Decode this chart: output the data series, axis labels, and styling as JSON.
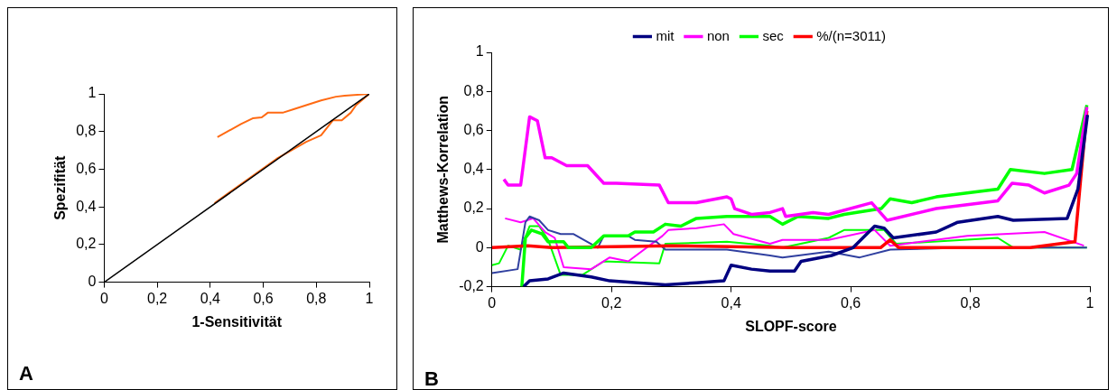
{
  "chart_data": [
    {
      "type": "line",
      "xlabel": "1-Sensitivität",
      "ylabel": "Spezifität",
      "xlim": [
        0,
        1
      ],
      "ylim": [
        0,
        1
      ],
      "xticks": [
        {
          "value": 0,
          "label": "0"
        },
        {
          "value": 0.2,
          "label": "0,2"
        },
        {
          "value": 0.4,
          "label": "0,4"
        },
        {
          "value": 0.6,
          "label": "0,6"
        },
        {
          "value": 0.8,
          "label": "0,8"
        },
        {
          "value": 1,
          "label": "1"
        }
      ],
      "yticks": [
        {
          "value": 0,
          "label": "0"
        },
        {
          "value": 0.2,
          "label": "0,2"
        },
        {
          "value": 0.4,
          "label": "0,4"
        },
        {
          "value": 0.6,
          "label": "0,6"
        },
        {
          "value": 0.8,
          "label": "0,8"
        },
        {
          "value": 1,
          "label": "1"
        }
      ],
      "grid": false,
      "legend": false,
      "marker": "none",
      "annotations": [
        "A"
      ],
      "series": [
        {
          "color": "#000000",
          "x": [
            0,
            1
          ],
          "values": [
            0,
            1
          ]
        },
        {
          "color": "#ff6a13",
          "x": [
            0.427,
            0.516,
            0.56,
            0.594,
            0.617,
            0.673,
            0.717,
            0.762,
            0.818,
            0.874,
            0.907,
            1
          ],
          "values": [
            0.77,
            0.84,
            0.87,
            0.875,
            0.9,
            0.9,
            0.92,
            0.94,
            0.965,
            0.985,
            0.99,
            1
          ]
        },
        {
          "color": "#ff6a13",
          "x": [
            0.416,
            0.65,
            0.762,
            0.818,
            0.863,
            0.896,
            0.93,
            0.95,
            1
          ],
          "values": [
            0.42,
            0.655,
            0.745,
            0.78,
            0.86,
            0.86,
            0.9,
            0.94,
            1
          ]
        }
      ]
    },
    {
      "type": "line",
      "xlabel": "SLOPF-score",
      "ylabel": "Matthews-Korrelation",
      "xlim": [
        0,
        1
      ],
      "ylim": [
        -0.2,
        1
      ],
      "xticks": [
        {
          "value": 0,
          "label": "0"
        },
        {
          "value": 0.2,
          "label": "0,2"
        },
        {
          "value": 0.4,
          "label": "0,4"
        },
        {
          "value": 0.6,
          "label": "0,6"
        },
        {
          "value": 0.8,
          "label": "0,8"
        },
        {
          "value": 1,
          "label": "1"
        }
      ],
      "yticks": [
        {
          "value": -0.2,
          "label": "-0,2"
        },
        {
          "value": 0,
          "label": "0"
        },
        {
          "value": 0.2,
          "label": "0,2"
        },
        {
          "value": 0.4,
          "label": "0,4"
        },
        {
          "value": 0.6,
          "label": "0,6"
        },
        {
          "value": 0.8,
          "label": "0,8"
        },
        {
          "value": 1,
          "label": "1"
        }
      ],
      "grid": false,
      "legend": "top",
      "marker": "none",
      "annotations": [
        "B"
      ],
      "series": [
        {
          "name": "mit",
          "color": "#000080",
          "x": [
            0.053,
            0.063,
            0.094,
            0.12,
            0.166,
            0.197,
            0.29,
            0.342,
            0.388,
            0.4,
            0.434,
            0.465,
            0.506,
            0.517,
            0.568,
            0.604,
            0.64,
            0.656,
            0.671,
            0.743,
            0.779,
            0.846,
            0.872,
            0.962,
            0.98,
            0.996
          ],
          "values": [
            -0.2,
            -0.17,
            -0.16,
            -0.13,
            -0.15,
            -0.17,
            -0.19,
            -0.18,
            -0.17,
            -0.09,
            -0.11,
            -0.12,
            -0.12,
            -0.07,
            -0.04,
            0,
            0.11,
            0.1,
            0.05,
            0.08,
            0.13,
            0.16,
            0.14,
            0.15,
            0.3,
            0.68
          ]
        },
        {
          "name": "non",
          "color": "#ff00ff",
          "x": [
            0.02,
            0.027,
            0.048,
            0.063,
            0.076,
            0.089,
            0.1,
            0.125,
            0.16,
            0.187,
            0.208,
            0.28,
            0.295,
            0.342,
            0.393,
            0.4,
            0.406,
            0.435,
            0.465,
            0.486,
            0.491,
            0.537,
            0.563,
            0.635,
            0.661,
            0.743,
            0.846,
            0.87,
            0.898,
            0.924,
            0.965,
            0.978,
            0.995
          ],
          "values": [
            0.35,
            0.32,
            0.32,
            0.67,
            0.65,
            0.46,
            0.46,
            0.42,
            0.42,
            0.33,
            0.33,
            0.32,
            0.23,
            0.23,
            0.26,
            0.25,
            0.2,
            0.17,
            0.18,
            0.2,
            0.16,
            0.18,
            0.17,
            0.23,
            0.14,
            0.2,
            0.24,
            0.33,
            0.32,
            0.28,
            0.32,
            0.38,
            0.72
          ]
        },
        {
          "name": "sec",
          "color": "#00ff00",
          "x": [
            0.05,
            0.056,
            0.066,
            0.084,
            0.094,
            0.12,
            0.128,
            0.166,
            0.187,
            0.228,
            0.239,
            0.27,
            0.29,
            0.316,
            0.342,
            0.393,
            0.465,
            0.486,
            0.512,
            0.563,
            0.589,
            0.651,
            0.666,
            0.702,
            0.743,
            0.846,
            0.867,
            0.924,
            0.97,
            0.995
          ],
          "values": [
            -0.2,
            0.05,
            0.09,
            0.07,
            0.03,
            0.03,
            0,
            0,
            0.06,
            0.06,
            0.08,
            0.08,
            0.12,
            0.11,
            0.15,
            0.16,
            0.16,
            0.12,
            0.16,
            0.15,
            0.17,
            0.2,
            0.25,
            0.23,
            0.26,
            0.3,
            0.4,
            0.38,
            0.4,
            0.73
          ]
        },
        {
          "name": "%/(n=3011)",
          "color": "#ff0000",
          "x": [
            0,
            0.06,
            0.1,
            0.3,
            0.5,
            0.65,
            0.666,
            0.68,
            0.8,
            0.9,
            0.975,
            0.995
          ],
          "values": [
            0,
            0.01,
            0,
            0.01,
            0,
            0,
            0.04,
            0,
            0,
            0,
            0.03,
            0.7
          ]
        },
        {
          "color": "#3040a0",
          "x": [
            0,
            0.043,
            0.056,
            0.063,
            0.079,
            0.094,
            0.115,
            0.136,
            0.177,
            0.187,
            0.228,
            0.239,
            0.275,
            0.29,
            0.393,
            0.465,
            0.486,
            0.563,
            0.615,
            0.666,
            0.795,
            0.995
          ],
          "values": [
            -0.13,
            -0.11,
            0.13,
            0.16,
            0.14,
            0.09,
            0.07,
            0.07,
            0,
            0.06,
            0.06,
            0.04,
            0.03,
            -0.01,
            -0.01,
            -0.04,
            -0.05,
            -0.02,
            -0.05,
            -0.01,
            0,
            0
          ]
        },
        {
          "color": "#ff00ff",
          "x": [
            0.022,
            0.048,
            0.069,
            0.089,
            0.105,
            0.12,
            0.166,
            0.197,
            0.228,
            0.285,
            0.295,
            0.342,
            0.388,
            0.404,
            0.465,
            0.486,
            0.563,
            0.64,
            0.666,
            0.795,
            0.924,
            0.99
          ],
          "values": [
            0.15,
            0.13,
            0.15,
            0.08,
            0.05,
            -0.1,
            -0.11,
            -0.05,
            -0.07,
            0.06,
            0.09,
            0.1,
            0.12,
            0.07,
            0.02,
            0.04,
            0.04,
            0.09,
            0.01,
            0.06,
            0.08,
            0.01
          ]
        },
        {
          "color": "#00ff00",
          "x": [
            0,
            0.012,
            0.027,
            0.048,
            0.063,
            0.079,
            0.094,
            0.115,
            0.151,
            0.187,
            0.28,
            0.29,
            0.393,
            0.465,
            0.486,
            0.563,
            0.589,
            0.656,
            0.676,
            0.846,
            0.872,
            0.995
          ],
          "values": [
            -0.09,
            -0.08,
            0.01,
            -0.01,
            0.11,
            0.11,
            0.04,
            -0.14,
            -0.14,
            -0.07,
            -0.08,
            0.02,
            0.03,
            0.01,
            0,
            0.05,
            0.09,
            0.09,
            0.02,
            0.05,
            0,
            0
          ]
        }
      ]
    }
  ]
}
